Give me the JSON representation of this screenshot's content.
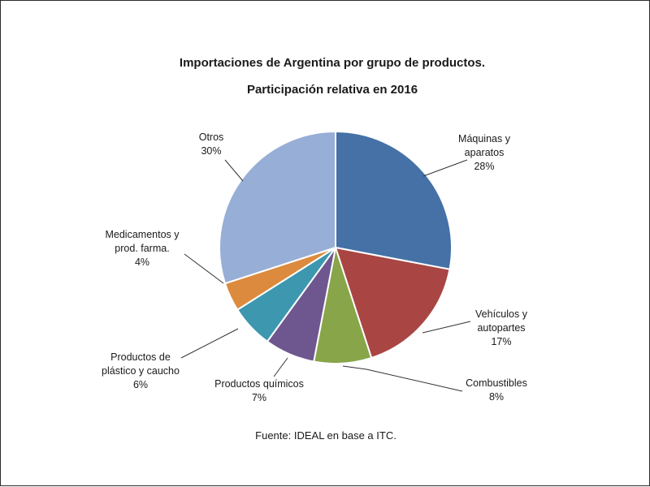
{
  "chart_data": {
    "type": "pie",
    "title": "Importaciones de Argentina por grupo de productos.",
    "subtitle": "Participación relativa en 2016",
    "source": "Fuente: IDEAL en base a ITC.",
    "slices": [
      {
        "name_lines": [
          "Máquinas y",
          "aparatos"
        ],
        "value": 28,
        "label": "28%",
        "color": "#4571a6"
      },
      {
        "name_lines": [
          "Vehículos y",
          "autopartes"
        ],
        "value": 17,
        "label": "17%",
        "color": "#a94543"
      },
      {
        "name_lines": [
          "Combustibles"
        ],
        "value": 8,
        "label": "8%",
        "color": "#88a54a"
      },
      {
        "name_lines": [
          "Productos químicos"
        ],
        "value": 7,
        "label": "7%",
        "color": "#6e568f"
      },
      {
        "name_lines": [
          "Productos de",
          "plástico y caucho"
        ],
        "value": 6,
        "label": "6%",
        "color": "#3c97af"
      },
      {
        "name_lines": [
          "Medicamentos y",
          "prod. farma."
        ],
        "value": 4,
        "label": "4%",
        "color": "#dc8a3d"
      },
      {
        "name_lines": [
          "Otros"
        ],
        "value": 30,
        "label": "30%",
        "color": "#97aed6"
      }
    ]
  }
}
